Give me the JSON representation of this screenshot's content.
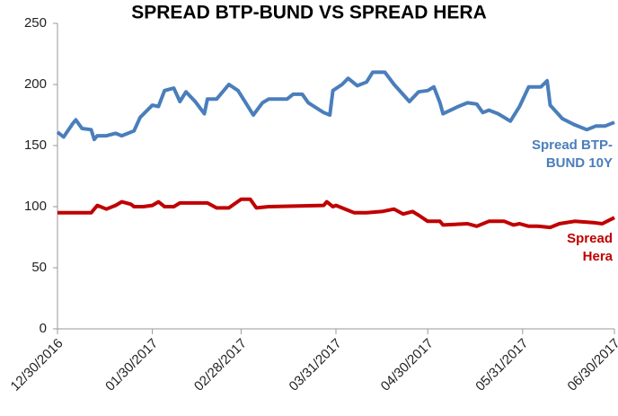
{
  "chart_data": {
    "type": "line",
    "title": "SPREAD BTP-BUND VS SPREAD HERA",
    "xlim": [
      "2016-12-30",
      "2017-06-30"
    ],
    "xticks": [
      {
        "value": "2016-12-30",
        "label": "12/30/2016"
      },
      {
        "value": "2017-01-30",
        "label": "01/30/2017"
      },
      {
        "value": "2017-02-28",
        "label": "02/28/2017"
      },
      {
        "value": "2017-03-31",
        "label": "03/31/2017"
      },
      {
        "value": "2017-04-30",
        "label": "04/30/2017"
      },
      {
        "value": "2017-05-31",
        "label": "05/31/2017"
      },
      {
        "value": "2017-06-30",
        "label": "06/30/2017"
      }
    ],
    "ylim": [
      0,
      250
    ],
    "yticks": [
      0,
      50,
      100,
      150,
      200,
      250
    ],
    "grid": false,
    "series": [
      {
        "name": "Spread BTP-BUND 10Y",
        "color": "#4a7ebb",
        "x": [
          "2016-12-30",
          "2017-01-01",
          "2017-01-04",
          "2017-01-05",
          "2017-01-07",
          "2017-01-10",
          "2017-01-11",
          "2017-01-12",
          "2017-01-15",
          "2017-01-18",
          "2017-01-20",
          "2017-01-24",
          "2017-01-26",
          "2017-01-30",
          "2017-02-01",
          "2017-02-03",
          "2017-02-06",
          "2017-02-08",
          "2017-02-10",
          "2017-02-13",
          "2017-02-16",
          "2017-02-17",
          "2017-02-20",
          "2017-02-24",
          "2017-02-27",
          "2017-03-02",
          "2017-03-04",
          "2017-03-07",
          "2017-03-09",
          "2017-03-15",
          "2017-03-17",
          "2017-03-20",
          "2017-03-22",
          "2017-03-27",
          "2017-03-29",
          "2017-03-30",
          "2017-04-02",
          "2017-04-04",
          "2017-04-07",
          "2017-04-10",
          "2017-04-12",
          "2017-04-16",
          "2017-04-19",
          "2017-04-24",
          "2017-04-27",
          "2017-04-30",
          "2017-05-02",
          "2017-05-04",
          "2017-05-05",
          "2017-05-10",
          "2017-05-13",
          "2017-05-16",
          "2017-05-18",
          "2017-05-20",
          "2017-05-23",
          "2017-05-27",
          "2017-05-30",
          "2017-06-02",
          "2017-06-06",
          "2017-06-08",
          "2017-06-09",
          "2017-06-13",
          "2017-06-17",
          "2017-06-21",
          "2017-06-24",
          "2017-06-27",
          "2017-06-30"
        ],
        "values": [
          161,
          157,
          168,
          171,
          164,
          163,
          155,
          158,
          158,
          160,
          158,
          162,
          173,
          183,
          182,
          195,
          197,
          186,
          194,
          186,
          176,
          188,
          188,
          200,
          195,
          183,
          175,
          185,
          188,
          188,
          192,
          192,
          185,
          177,
          175,
          195,
          200,
          205,
          199,
          202,
          210,
          210,
          200,
          186,
          194,
          195,
          198,
          185,
          176,
          182,
          185,
          184,
          177,
          179,
          176,
          170,
          182,
          198,
          198,
          203,
          183,
          172,
          167,
          163,
          166,
          166,
          169
        ]
      },
      {
        "name": "Spread Hera",
        "color": "#c00000",
        "x": [
          "2016-12-30",
          "2017-01-04",
          "2017-01-10",
          "2017-01-12",
          "2017-01-15",
          "2017-01-18",
          "2017-01-20",
          "2017-01-23",
          "2017-01-24",
          "2017-01-27",
          "2017-01-30",
          "2017-02-01",
          "2017-02-03",
          "2017-02-06",
          "2017-02-08",
          "2017-02-17",
          "2017-02-20",
          "2017-02-24",
          "2017-02-28",
          "2017-03-03",
          "2017-03-05",
          "2017-03-09",
          "2017-03-27",
          "2017-03-28",
          "2017-03-30",
          "2017-03-31",
          "2017-04-06",
          "2017-04-10",
          "2017-04-15",
          "2017-04-19",
          "2017-04-22",
          "2017-04-25",
          "2017-04-27",
          "2017-04-30",
          "2017-05-04",
          "2017-05-05",
          "2017-05-13",
          "2017-05-16",
          "2017-05-20",
          "2017-05-25",
          "2017-05-28",
          "2017-05-30",
          "2017-06-02",
          "2017-06-05",
          "2017-06-09",
          "2017-06-12",
          "2017-06-17",
          "2017-06-23",
          "2017-06-26",
          "2017-06-30"
        ],
        "values": [
          95,
          95,
          95,
          101,
          98,
          101,
          104,
          102,
          100,
          100,
          101,
          104,
          100,
          100,
          103,
          103,
          99,
          99,
          106,
          106,
          99,
          100,
          101,
          104,
          100,
          101,
          95,
          95,
          96,
          98,
          94,
          96,
          93,
          88,
          88,
          85,
          86,
          84,
          88,
          88,
          85,
          86,
          84,
          84,
          83,
          86,
          88,
          87,
          86,
          91
        ]
      }
    ]
  }
}
